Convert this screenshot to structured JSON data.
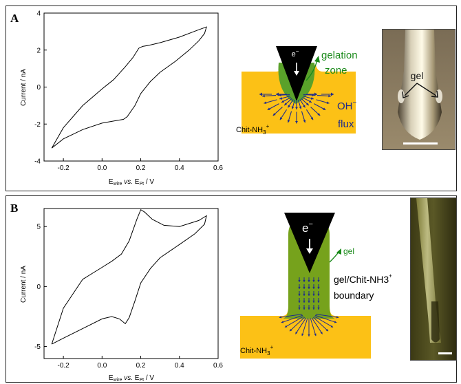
{
  "panel_a": {
    "label": "A",
    "chart": {
      "y_label": "Current / nA",
      "x_label": {
        "e1": "E",
        "s1": "wire",
        "mid": " vs. ",
        "e2": "E",
        "s2": "Pt",
        "unit": " / V"
      },
      "x_ticks": [
        "-0.2",
        "0.0",
        "0.2",
        "0.4",
        "0.6"
      ],
      "y_ticks": [
        "4",
        "2",
        "0",
        "-2",
        "-4"
      ]
    },
    "schematic": {
      "electron": "e",
      "electron_sup": "−",
      "gelation": "gelation",
      "zone": "zone",
      "oh": "OH",
      "oh_sup": "−",
      "flux": "flux",
      "chit_label": "Chit-NH",
      "chit_sub": "3",
      "chit_sup": "+"
    },
    "photo": {
      "gel_label": "gel"
    },
    "colors": {
      "substrate": "#fcc116",
      "gel": "#5aa12a",
      "arrow": "#1c2a8c",
      "green_text": "#1a8a1a"
    }
  },
  "panel_b": {
    "label": "B",
    "chart": {
      "y_label": "Current / nA",
      "x_label": {
        "e1": "E",
        "s1": "wire",
        "mid": " vs. ",
        "e2": "E",
        "s2": "Pt",
        "unit": " / V"
      },
      "x_ticks": [
        "-0.2",
        "0.0",
        "0.2",
        "0.4",
        "0.6"
      ],
      "y_ticks": [
        "5",
        "0",
        "-5"
      ]
    },
    "schematic": {
      "electron": "e",
      "electron_sup": "−",
      "gel": "gel",
      "boundary_line1": "gel/Chit-NH3",
      "boundary_sup": "+",
      "boundary_line2": "boundary",
      "chit_label": "Chit-NH",
      "chit_sub": "3",
      "chit_sup": "+"
    }
  },
  "chart_data": [
    {
      "type": "line",
      "panel": "A",
      "xlabel": "Ewire vs. EPt / V",
      "ylabel": "Current / nA",
      "xlim": [
        -0.3,
        0.6
      ],
      "ylim": [
        -4,
        4
      ],
      "x_ticks": [
        -0.2,
        0.0,
        0.2,
        0.4,
        0.6
      ],
      "y_ticks": [
        -4,
        -2,
        0,
        2,
        4
      ],
      "series": [
        {
          "points": [
            [
              -0.26,
              -3.3
            ],
            [
              -0.2,
              -2.8
            ],
            [
              -0.1,
              -2.3
            ],
            [
              0.0,
              -1.95
            ],
            [
              0.08,
              -1.8
            ],
            [
              0.11,
              -1.75
            ],
            [
              0.13,
              -1.6
            ],
            [
              0.17,
              -1.0
            ],
            [
              0.2,
              -0.35
            ],
            [
              0.25,
              0.3
            ],
            [
              0.3,
              0.8
            ],
            [
              0.38,
              1.4
            ],
            [
              0.45,
              2.0
            ],
            [
              0.5,
              2.5
            ],
            [
              0.53,
              2.9
            ],
            [
              0.54,
              3.25
            ],
            [
              0.5,
              3.1
            ],
            [
              0.4,
              2.7
            ],
            [
              0.3,
              2.4
            ],
            [
              0.24,
              2.25
            ],
            [
              0.21,
              2.2
            ],
            [
              0.19,
              2.1
            ],
            [
              0.16,
              1.6
            ],
            [
              0.12,
              1.1
            ],
            [
              0.06,
              0.4
            ],
            [
              0.0,
              -0.1
            ],
            [
              -0.1,
              -1.0
            ],
            [
              -0.2,
              -2.2
            ],
            [
              -0.26,
              -3.3
            ]
          ]
        }
      ]
    },
    {
      "type": "line",
      "panel": "B",
      "xlabel": "Ewire vs. EPt / V",
      "ylabel": "Current / nA",
      "xlim": [
        -0.3,
        0.6
      ],
      "ylim": [
        -6,
        6.5
      ],
      "x_ticks": [
        -0.2,
        0.0,
        0.2,
        0.4,
        0.6
      ],
      "y_ticks": [
        -5,
        0,
        5
      ],
      "series": [
        {
          "points": [
            [
              -0.26,
              -4.8
            ],
            [
              -0.2,
              -4.3
            ],
            [
              -0.1,
              -3.5
            ],
            [
              0.0,
              -2.7
            ],
            [
              0.05,
              -2.5
            ],
            [
              0.09,
              -2.7
            ],
            [
              0.12,
              -3.1
            ],
            [
              0.14,
              -2.6
            ],
            [
              0.17,
              -1.2
            ],
            [
              0.2,
              0.3
            ],
            [
              0.25,
              1.5
            ],
            [
              0.3,
              2.4
            ],
            [
              0.4,
              3.5
            ],
            [
              0.48,
              4.4
            ],
            [
              0.53,
              5.2
            ],
            [
              0.54,
              5.9
            ],
            [
              0.5,
              5.5
            ],
            [
              0.4,
              5.0
            ],
            [
              0.32,
              5.1
            ],
            [
              0.26,
              5.6
            ],
            [
              0.22,
              6.2
            ],
            [
              0.2,
              6.4
            ],
            [
              0.18,
              5.6
            ],
            [
              0.14,
              3.8
            ],
            [
              0.1,
              2.7
            ],
            [
              0.05,
              2.1
            ],
            [
              0.0,
              1.6
            ],
            [
              -0.1,
              0.6
            ],
            [
              -0.2,
              -1.8
            ],
            [
              -0.26,
              -4.8
            ]
          ]
        }
      ]
    }
  ]
}
